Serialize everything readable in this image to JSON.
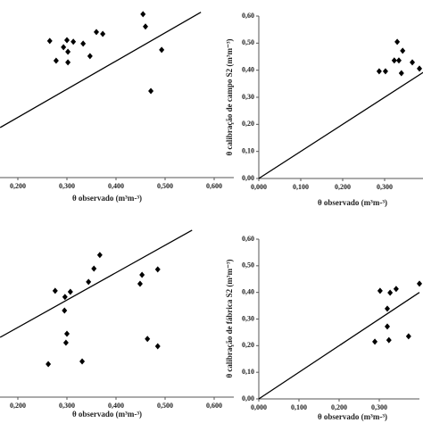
{
  "chart_data": [
    {
      "type": "scatter",
      "x_label": "θ observado (m³m-³)",
      "color": "#000000",
      "x": [
        0.265,
        0.278,
        0.293,
        0.3,
        0.302,
        0.302,
        0.313,
        0.333,
        0.347,
        0.36,
        0.373,
        0.455,
        0.46,
        0.493,
        0.471
      ],
      "values": [
        0.505,
        0.432,
        0.482,
        0.508,
        0.465,
        0.426,
        0.502,
        0.495,
        0.449,
        0.538,
        0.531,
        0.604,
        0.558,
        0.472,
        0.32
      ],
      "line": {
        "x": [
          0.164,
          0.573
        ],
        "y": [
          0.185,
          0.611
        ]
      },
      "xlim": [
        0.16,
        0.64
      ],
      "ylim": [
        0,
        0.62
      ],
      "xticks": [
        {
          "value": 0.2,
          "label": "0,200"
        },
        {
          "value": 0.3,
          "label": "0,300"
        },
        {
          "value": 0.4,
          "label": "0,400"
        },
        {
          "value": 0.5,
          "label": "0,500"
        },
        {
          "value": 0.6,
          "label": "0,600"
        }
      ]
    },
    {
      "type": "scatter",
      "x_label": "θ observado (m³m-³)",
      "y_label": "θ calibração de campo  S2 (m³m⁻³)",
      "color": "#000000",
      "x": [
        0.287,
        0.302,
        0.323,
        0.33,
        0.334,
        0.34,
        0.343,
        0.366,
        0.383
      ],
      "values": [
        0.396,
        0.396,
        0.436,
        0.505,
        0.436,
        0.389,
        0.472,
        0.429,
        0.406
      ],
      "line": {
        "x": [
          0,
          0.4
        ],
        "y": [
          0,
          0.4
        ]
      },
      "xlim": [
        0,
        0.4
      ],
      "ylim": [
        0,
        0.6
      ],
      "xticks": [
        {
          "value": 0,
          "label": "0,000"
        },
        {
          "value": 0.1,
          "label": "0,100"
        },
        {
          "value": 0.2,
          "label": "0,200"
        },
        {
          "value": 0.3,
          "label": "0,300"
        }
      ],
      "yticks": [
        {
          "value": 0,
          "label": "0,00"
        },
        {
          "value": 0.1,
          "label": "0,10"
        },
        {
          "value": 0.2,
          "label": "0,20"
        },
        {
          "value": 0.3,
          "label": "0,30"
        },
        {
          "value": 0.4,
          "label": "0,40"
        },
        {
          "value": 0.5,
          "label": "0,50"
        },
        {
          "value": 0.6,
          "label": "0,60"
        }
      ]
    },
    {
      "type": "scatter",
      "x_label": "θ observado (m³m-³)",
      "color": "#000000",
      "x": [
        0.276,
        0.295,
        0.296,
        0.298,
        0.3,
        0.307,
        0.262,
        0.331,
        0.344,
        0.355,
        0.367,
        0.449,
        0.453,
        0.485,
        0.464,
        0.485
      ],
      "values": [
        0.393,
        0.32,
        0.37,
        0.201,
        0.234,
        0.389,
        0.122,
        0.132,
        0.426,
        0.475,
        0.525,
        0.419,
        0.452,
        0.472,
        0.215,
        0.188
      ],
      "line": {
        "x": [
          0.164,
          0.555
        ],
        "y": [
          0.221,
          0.617
        ]
      },
      "xlim": [
        0.16,
        0.64
      ],
      "ylim": [
        0,
        0.62
      ],
      "xticks": [
        {
          "value": 0.2,
          "label": "0,200"
        },
        {
          "value": 0.3,
          "label": "0,300"
        },
        {
          "value": 0.4,
          "label": "0,400"
        },
        {
          "value": 0.5,
          "label": "0,500"
        },
        {
          "value": 0.6,
          "label": "0,600"
        }
      ]
    },
    {
      "type": "scatter",
      "x_label": "θ observado (m³m-³)",
      "y_label": "θ calibração de fábrica  S2 (m³m⁻³)",
      "color": "#000000",
      "x": [
        0.289,
        0.302,
        0.32,
        0.327,
        0.342,
        0.32,
        0.324,
        0.373,
        0.4
      ],
      "values": [
        0.215,
        0.406,
        0.339,
        0.399,
        0.413,
        0.272,
        0.221,
        0.235,
        0.433
      ],
      "line": {
        "x": [
          0,
          0.4
        ],
        "y": [
          0,
          0.4
        ]
      },
      "xlim": [
        0,
        0.4
      ],
      "ylim": [
        0,
        0.6
      ],
      "xticks": [
        {
          "value": 0,
          "label": "0,000"
        },
        {
          "value": 0.1,
          "label": "0,100"
        },
        {
          "value": 0.2,
          "label": "0,200"
        },
        {
          "value": 0.3,
          "label": "0,300"
        }
      ],
      "yticks": [
        {
          "value": 0,
          "label": "0,00"
        },
        {
          "value": 0.1,
          "label": "0,10"
        },
        {
          "value": 0.2,
          "label": "0,20"
        },
        {
          "value": 0.3,
          "label": "0,30"
        },
        {
          "value": 0.4,
          "label": "0,40"
        },
        {
          "value": 0.5,
          "label": "0,50"
        },
        {
          "value": 0.6,
          "label": "0,60"
        }
      ]
    }
  ]
}
